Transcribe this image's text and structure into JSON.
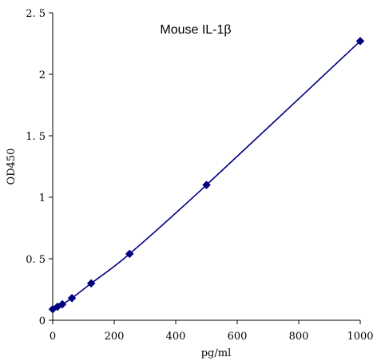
{
  "chart_data": {
    "type": "scatter",
    "title": "Mouse IL-1β",
    "xlabel": "pg/ml",
    "ylabel": "OD450",
    "xlim": [
      0,
      1000
    ],
    "ylim": [
      0,
      2.5
    ],
    "x_ticks": [
      0,
      200,
      400,
      600,
      800,
      1000
    ],
    "x_tick_labels": [
      "0",
      "200",
      "400",
      "600",
      "800",
      "1000"
    ],
    "y_ticks": [
      0,
      0.5,
      1,
      1.5,
      2,
      2.5
    ],
    "y_tick_labels": [
      "0",
      "0. 5",
      "1",
      "1. 5",
      "2",
      "2. 5"
    ],
    "grid": false,
    "legend": "none",
    "series": [
      {
        "marker": "diamond",
        "color": "#00007f",
        "line": "smooth",
        "x": [
          0,
          15.6,
          31.2,
          62.5,
          125,
          250,
          500,
          1000
        ],
        "y": [
          0.09,
          0.11,
          0.13,
          0.18,
          0.3,
          0.54,
          1.1,
          2.27
        ]
      }
    ]
  }
}
